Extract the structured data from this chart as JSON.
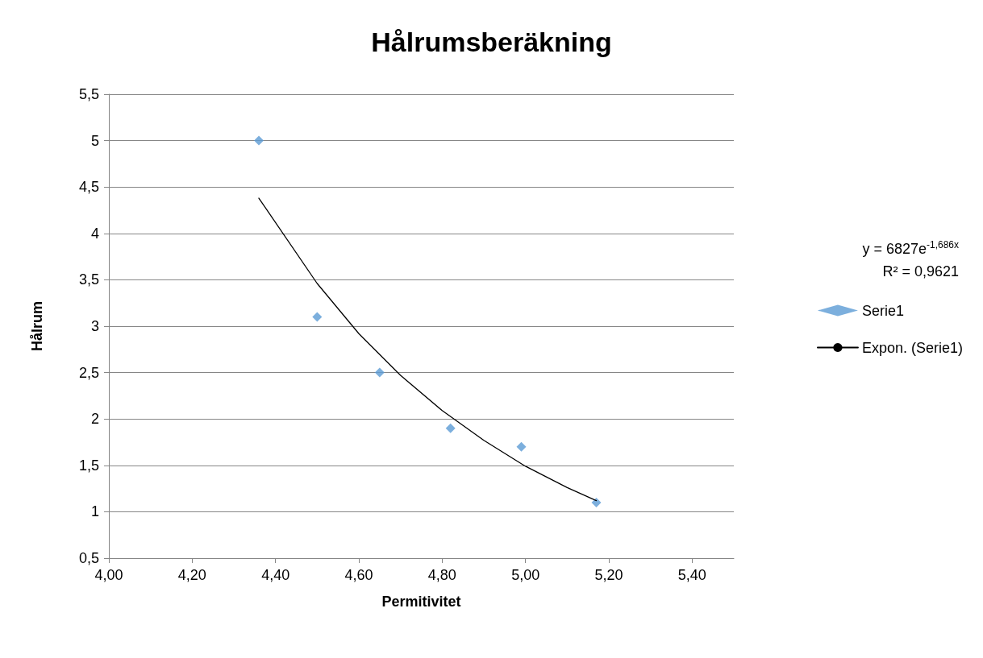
{
  "chart_data": {
    "type": "scatter",
    "title": "Hålrumsberäkning",
    "xlabel": "Permitivitet",
    "ylabel": "Hålrum",
    "series": [
      {
        "name": "Serie1",
        "color": "#5b9bd5",
        "x": [
          4.36,
          4.5,
          4.65,
          4.82,
          4.99,
          5.17
        ],
        "values": [
          5.0,
          3.1,
          2.5,
          1.9,
          1.7,
          1.1
        ]
      },
      {
        "name": "Expon. (Serie1)",
        "type": "line",
        "color": "#000000",
        "marker": "none",
        "x": [
          4.36,
          4.5,
          4.6,
          4.7,
          4.8,
          4.9,
          5.0,
          5.1,
          5.17
        ],
        "values": [
          4.38,
          3.46,
          2.92,
          2.47,
          2.09,
          1.77,
          1.49,
          1.26,
          1.12
        ]
      }
    ],
    "annotations": [
      "y = 6827e$^{-1,686x}$",
      "R² = 0,9621"
    ],
    "xlim": [
      4.0,
      5.5
    ],
    "xticks": [
      {
        "value": 4.0,
        "label": "4,00"
      },
      {
        "value": 4.2,
        "label": "4,20"
      },
      {
        "value": 4.4,
        "label": "4,40"
      },
      {
        "value": 4.6,
        "label": "4,60"
      },
      {
        "value": 4.8,
        "label": "4,80"
      },
      {
        "value": 5.0,
        "label": "5,00"
      },
      {
        "value": 5.2,
        "label": "5,20"
      },
      {
        "value": 5.4,
        "label": "5,40"
      }
    ],
    "ylim": [
      0.5,
      5.5
    ],
    "yticks": [
      {
        "value": 0.5,
        "label": "0,5"
      },
      1,
      {
        "value": 1.5,
        "label": "1,5"
      },
      2,
      {
        "value": 2.5,
        "label": "2,5"
      },
      3,
      {
        "value": 3.5,
        "label": "3,5"
      },
      4,
      {
        "value": 4.5,
        "label": "4,5"
      },
      5,
      {
        "value": 5.5,
        "label": "5,5"
      }
    ],
    "grid": "y",
    "legend": "right",
    "marker": "diamond",
    "line_style": "solid"
  }
}
